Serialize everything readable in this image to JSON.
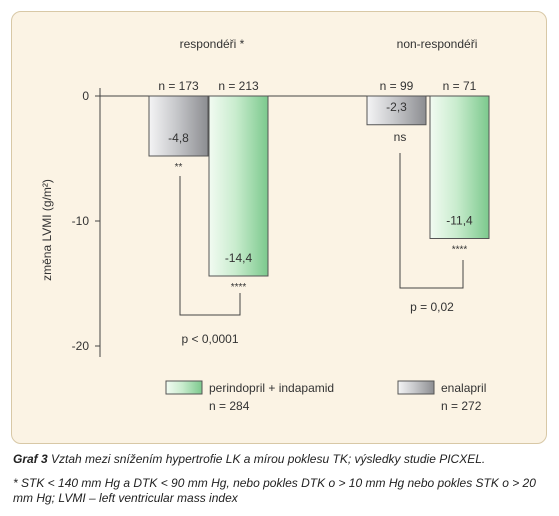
{
  "chart_data": {
    "type": "bar",
    "ylabel": "změna LVMI (g/m²)",
    "ylim": [
      -20,
      0
    ],
    "yticks": [
      0,
      -10,
      -20
    ],
    "groups": [
      {
        "label": "respondéři *",
        "bars": [
          {
            "series": "enalapril",
            "value": -4.8,
            "label": "-4,8",
            "n": "n = 173",
            "sig": "**"
          },
          {
            "series": "perindopril + indapamid",
            "value": -14.4,
            "label": "-14,4",
            "n": "n = 213",
            "sig": "****"
          }
        ],
        "comparison": "p  <  0,0001"
      },
      {
        "label": "non-respondéři",
        "bars": [
          {
            "series": "enalapril",
            "value": -2.3,
            "label": "-2,3",
            "n": "n = 99",
            "sig": "ns"
          },
          {
            "series": "perindopril + indapamid",
            "value": -11.4,
            "label": "-11,4",
            "n": "n = 71",
            "sig": "****"
          }
        ],
        "comparison": "p = 0,02"
      }
    ],
    "legend": [
      {
        "name": "perindopril + indapamid",
        "n": "n = 284",
        "color": "#9fdcab"
      },
      {
        "name": "enalapril",
        "n": "n = 272",
        "color": "#a3a4a8"
      }
    ],
    "legend_placement": "bottom",
    "grid": false
  },
  "caption": {
    "figure_label": "Graf 3",
    "title": "Vztah mezi snížením hypertrofie LK a mírou poklesu TK; výsledky studie PICXEL.",
    "footnote": "* STK < 140 mm Hg a DTK < 90 mm Hg, nebo pokles DTK o > 10 mm Hg nebo pokles STK o > 20 mm Hg; LVMI – left ventricular mass index"
  },
  "colors": {
    "panel_bg": "#fbf3e4",
    "panel_border": "#d8c8a6",
    "green_bar": "#9fdcab",
    "gray_bar": "#a3a4a8"
  }
}
